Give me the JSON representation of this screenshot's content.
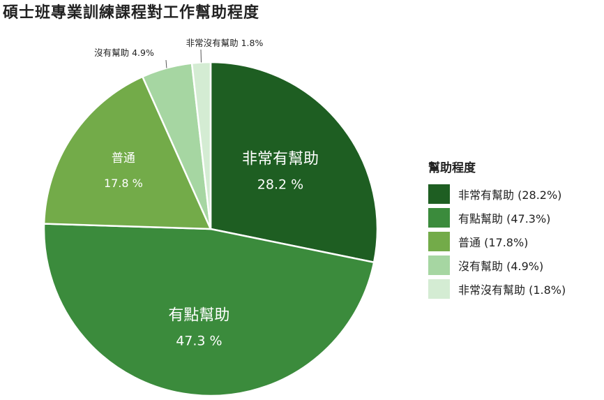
{
  "chart_data": {
    "type": "pie",
    "title": "碩士班專業訓練課程對工作幫助程度",
    "legend_title": "幫助程度",
    "legend_position": "right",
    "slices": [
      {
        "name": "非常有幫助",
        "value": 28.2,
        "pct_label": "28.2 %",
        "legend_label": "非常有幫助 (28.2%)",
        "color": "#1e5e22",
        "label_placement": "inside"
      },
      {
        "name": "有點幫助",
        "value": 47.3,
        "pct_label": "47.3 %",
        "legend_label": "有點幫助 (47.3%)",
        "color": "#3b8b3c",
        "label_placement": "inside"
      },
      {
        "name": "普通",
        "value": 17.8,
        "pct_label": "17.8 %",
        "legend_label": "普通 (17.8%)",
        "color": "#73ab49",
        "label_placement": "inside"
      },
      {
        "name": "沒有幫助",
        "value": 4.9,
        "pct_label": "4.9%",
        "outer_label": "沒有幫助 4.9%",
        "legend_label": "沒有幫助 (4.9%)",
        "color": "#a6d6a2",
        "label_placement": "outside"
      },
      {
        "name": "非常沒有幫助",
        "value": 1.8,
        "pct_label": "1.8%",
        "outer_label": "非常沒有幫助 1.8%",
        "legend_label": "非常沒有幫助 (1.8%)",
        "color": "#d4ecd3",
        "label_placement": "outside"
      }
    ]
  }
}
